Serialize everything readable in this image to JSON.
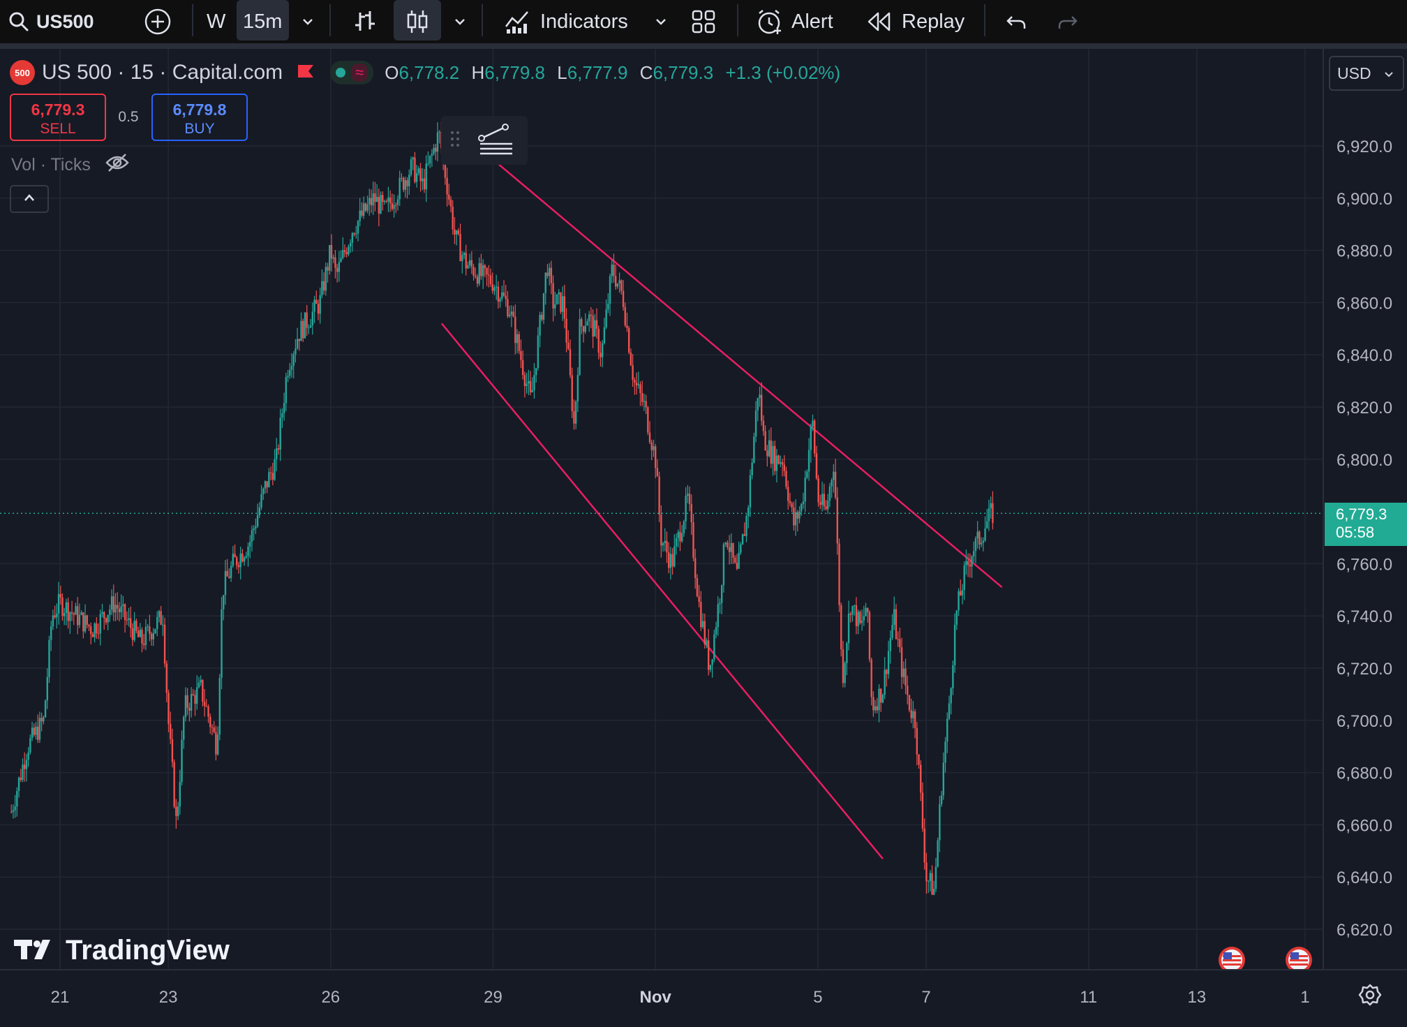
{
  "toolbar": {
    "symbol": "US500",
    "interval_w": "W",
    "interval_active": "15m",
    "indicators": "Indicators",
    "alert": "Alert",
    "replay": "Replay"
  },
  "legend": {
    "badge": "500",
    "title": "US 500 · 15 · Capital.com",
    "o_label": "O",
    "o_value": "6,778.2",
    "h_label": "H",
    "h_value": "6,779.8",
    "l_label": "L",
    "l_value": "6,777.9",
    "c_label": "C",
    "c_value": "6,779.3",
    "change": "+1.3 (+0.02%)"
  },
  "trade": {
    "sell_price": "6,779.3",
    "sell_label": "SELL",
    "spread": "0.5",
    "buy_price": "6,779.8",
    "buy_label": "BUY"
  },
  "volume": {
    "label": "Vol · Ticks"
  },
  "currency": "USD",
  "current_price": {
    "value": "6,779.3",
    "countdown": "05:58"
  },
  "watermark": "TradingView",
  "colors": {
    "up": "#26a69a",
    "down": "#ef5350",
    "channel": "#e91e63",
    "background": "#161a25",
    "buy_blue": "#2962ff",
    "price_label_bg": "#22ab94"
  },
  "chart_data": {
    "type": "line",
    "description_series": "US500 15m close (approx.)",
    "y_ticks": [
      "6,920.0",
      "6,900.0",
      "6,880.0",
      "6,860.0",
      "6,840.0",
      "6,820.0",
      "6,800.0",
      "6,760.0",
      "6,740.0",
      "6,720.0",
      "6,700.0",
      "6,680.0",
      "6,660.0",
      "6,640.0",
      "6,620.0"
    ],
    "y_tick_values": [
      6920,
      6900,
      6880,
      6860,
      6840,
      6820,
      6800,
      6760,
      6740,
      6720,
      6700,
      6680,
      6660,
      6640,
      6620
    ],
    "ylim": [
      6614,
      6935
    ],
    "x_ticks": [
      "21",
      "23",
      "26",
      "29",
      "Nov",
      "5",
      "7",
      "11",
      "13",
      "1"
    ],
    "x_tick_positions_days": [
      0,
      2,
      5,
      8,
      11,
      14,
      16,
      19,
      21,
      23
    ],
    "xlim_days": [
      -0.9,
      21.4
    ],
    "x": [
      -0.9,
      -0.6,
      -0.3,
      -0.15,
      0,
      0.3,
      0.6,
      1.0,
      1.5,
      1.9,
      2.0,
      2.15,
      2.3,
      2.6,
      2.9,
      3.0,
      3.2,
      3.5,
      3.8,
      4.0,
      4.2,
      4.4,
      4.8,
      5.0,
      5.1,
      5.4,
      5.8,
      6.0,
      6.3,
      6.5,
      6.7,
      7.0,
      7.3,
      7.5,
      7.8,
      8.0,
      8.3,
      8.7,
      9.0,
      9.1,
      9.3,
      9.5,
      9.6,
      9.75,
      9.9,
      10.0,
      10.2,
      10.4,
      10.6,
      10.8,
      11.0,
      11.1,
      11.3,
      11.6,
      11.8,
      12.0,
      12.2,
      12.3,
      12.5,
      12.7,
      12.9,
      13.0,
      13.2,
      13.35,
      13.55,
      13.7,
      13.9,
      14.0,
      14.15,
      14.3,
      14.45,
      14.6,
      14.8,
      14.9,
      15.0,
      15.2,
      15.4,
      15.55,
      15.7,
      15.8,
      15.9,
      16.0,
      16.15,
      16.3,
      16.4,
      16.55,
      16.7,
      16.85,
      17.0,
      17.1,
      17.2,
      17.35,
      17.5,
      17.65,
      17.8,
      17.95
    ],
    "y": [
      6665,
      6690,
      6700,
      6740,
      6745,
      6740,
      6735,
      6745,
      6730,
      6740,
      6700,
      6660,
      6705,
      6712,
      6690,
      6750,
      6760,
      6768,
      6790,
      6800,
      6835,
      6848,
      6860,
      6880,
      6870,
      6888,
      6900,
      6895,
      6905,
      6912,
      6905,
      6925,
      6885,
      6875,
      6870,
      6868,
      6858,
      6822,
      6875,
      6860,
      6860,
      6812,
      6850,
      6855,
      6848,
      6840,
      6873,
      6862,
      6830,
      6820,
      6800,
      6770,
      6760,
      6785,
      6745,
      6720,
      6750,
      6772,
      6755,
      6780,
      6828,
      6808,
      6800,
      6800,
      6775,
      6782,
      6815,
      6785,
      6780,
      6800,
      6715,
      6745,
      6735,
      6745,
      6705,
      6712,
      6740,
      6720,
      6705,
      6700,
      6670,
      6640,
      6635,
      6680,
      6700,
      6740,
      6755,
      6765,
      6770,
      6775,
      6779,
      6779,
      6779,
      6779,
      6779,
      6779
    ],
    "channel_upper": {
      "from": {
        "x": 7.47,
        "y": 6924
      },
      "to": {
        "x": 16.0,
        "y": 6779
      },
      "extends_to": {
        "x": 17.4,
        "y": 6751
      }
    },
    "channel_lower": {
      "from": {
        "x": 7.05,
        "y": 6852
      },
      "to": {
        "x": 15.2,
        "y": 6647
      }
    },
    "current_value": 6779.3
  }
}
